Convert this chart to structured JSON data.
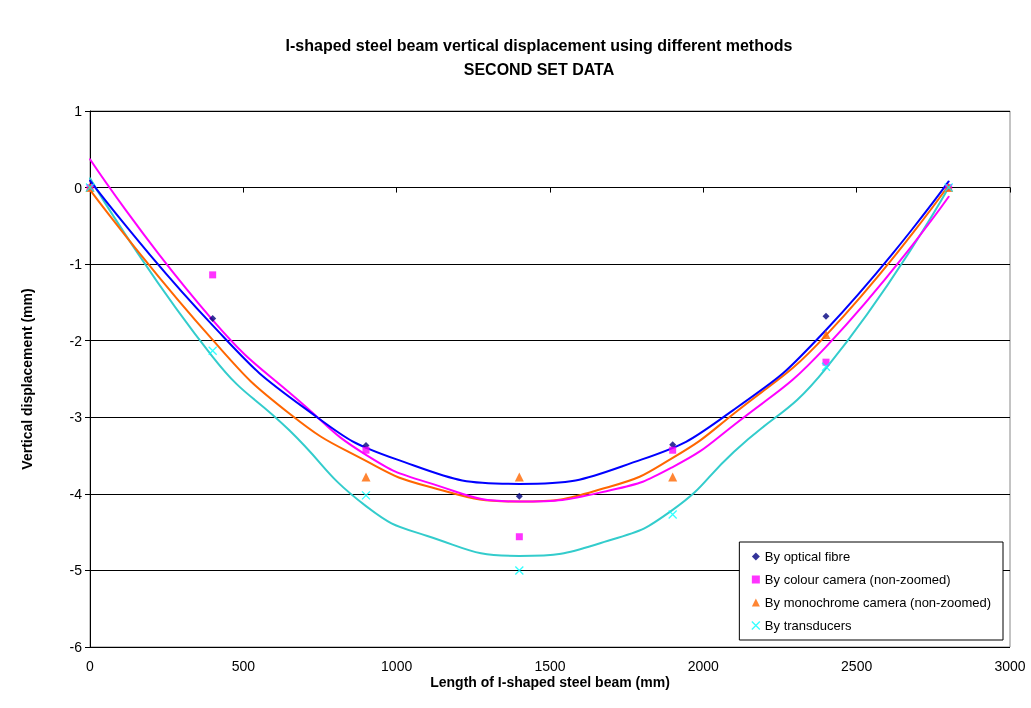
{
  "chart_data": {
    "type": "scatter",
    "title": "I-shaped steel beam vertical displacement using different methods\nSECOND SET DATA",
    "xlabel": "Length of I-shaped steel beam (mm)",
    "ylabel": "Vertical displacement (mm)",
    "x": [
      0,
      400,
      900,
      1400,
      1900,
      2400,
      2800
    ],
    "series": [
      {
        "name": "By optical fibre",
        "marker": "diamond",
        "color": "#000080",
        "values": [
          0,
          -1.71,
          -3.37,
          -4.03,
          -3.36,
          -1.68,
          0
        ]
      },
      {
        "name": "By colour camera (non-zoomed)",
        "marker": "square",
        "color": "#ff00ff",
        "values": [
          0,
          -1.14,
          -3.43,
          -4.56,
          -3.43,
          -2.28,
          0
        ]
      },
      {
        "name": "By monochrome camera (non-zoomed)",
        "marker": "triangle",
        "color": "#ff6600",
        "values": [
          0,
          null,
          -3.78,
          -3.78,
          -3.78,
          -1.92,
          0
        ]
      },
      {
        "name": "By transducers",
        "marker": "cross",
        "color": "#00ffff",
        "values": [
          0,
          -2.13,
          -4.02,
          -5.0,
          -4.27,
          -2.34,
          0
        ]
      },
      {
        "type": "line",
        "marker": "none",
        "color": "#0000ff",
        "x": [
          0,
          400,
          700,
          1000,
          1400,
          1800,
          2100,
          2400,
          2800
        ],
        "values": [
          0.09,
          -1.8,
          -2.88,
          -3.55,
          -3.87,
          -3.55,
          -2.9,
          -1.86,
          0.08
        ]
      },
      {
        "type": "line",
        "marker": "none",
        "color": "#ff00ff",
        "x": [
          0,
          400,
          700,
          900,
          1100,
          1400,
          1700,
          1900,
          2100,
          2400,
          2800
        ],
        "values": [
          0.37,
          -1.73,
          -2.85,
          -3.49,
          -3.85,
          -4.1,
          -3.95,
          -3.65,
          -3.1,
          -2.08,
          -0.12
        ]
      },
      {
        "type": "line",
        "marker": "none",
        "color": "#ff6600",
        "x": [
          0,
          400,
          650,
          900,
          1100,
          1400,
          1700,
          1900,
          2100,
          2400,
          2800
        ],
        "values": [
          -0.03,
          -1.99,
          -2.95,
          -3.57,
          -3.9,
          -4.1,
          -3.9,
          -3.53,
          -2.95,
          -1.93,
          0.03
        ]
      },
      {
        "type": "line",
        "marker": "none",
        "color": "#33cccc",
        "x": [
          0,
          400,
          650,
          900,
          1100,
          1400,
          1700,
          1900,
          2100,
          2400,
          2800
        ],
        "values": [
          0.12,
          -2.21,
          -3.17,
          -4.16,
          -4.55,
          -4.81,
          -4.6,
          -4.21,
          -3.45,
          -2.36,
          0.0
        ]
      }
    ],
    "xlim": [
      0,
      3000
    ],
    "xticks": [
      0,
      500,
      1000,
      1500,
      2000,
      2500,
      3000
    ],
    "ylim": [
      -6,
      1
    ],
    "yticks": [
      -6,
      -5,
      -4,
      -3,
      -2,
      -1,
      0,
      1
    ],
    "grid": "y",
    "legend": "bottom right"
  }
}
